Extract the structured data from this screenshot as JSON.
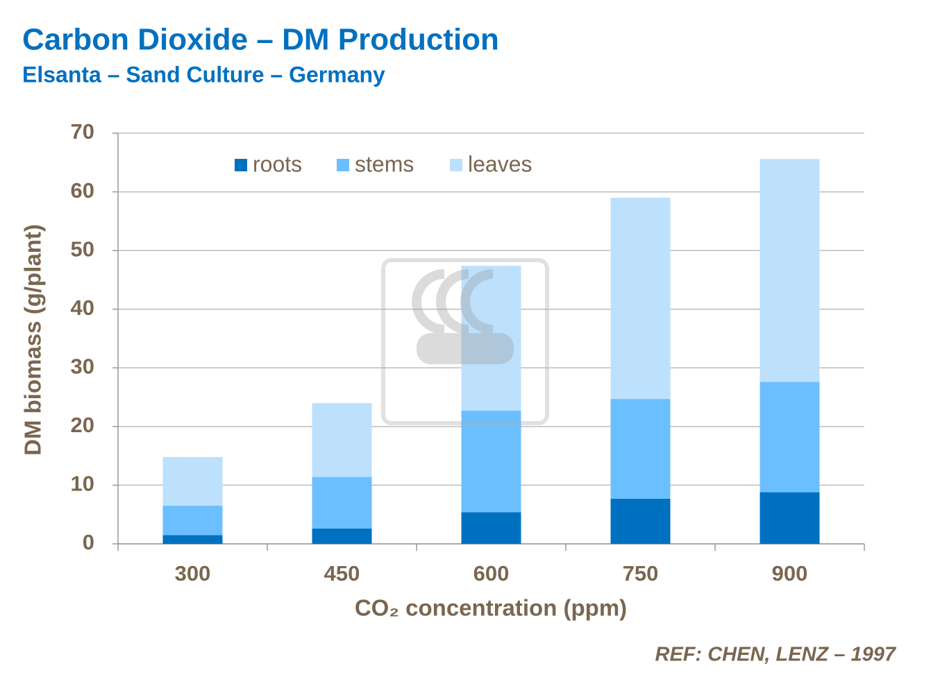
{
  "chart_data": {
    "type": "bar",
    "stacked": true,
    "title": "Carbon Dioxide – DM Production",
    "subtitle": "Elsanta – Sand Culture – Germany",
    "x_label": "CO₂ concentration (ppm)",
    "y_label": "DM biomass (g/plant)",
    "annotation": "REF: CHEN, LENZ – 1997",
    "watermark": "YARA",
    "categories": [
      "300",
      "450",
      "600",
      "750",
      "900"
    ],
    "series": [
      {
        "name": "roots",
        "color": "#0070c0",
        "values": [
          1.5,
          2.6,
          5.4,
          7.7,
          8.8
        ]
      },
      {
        "name": "stems",
        "color": "#6bbfff",
        "values": [
          5.0,
          8.8,
          17.3,
          17.0,
          18.8
        ]
      },
      {
        "name": "leaves",
        "color": "#bde0fc",
        "values": [
          8.3,
          12.6,
          24.7,
          34.3,
          38.0
        ]
      }
    ],
    "ylim": [
      0,
      70
    ],
    "yticks": [
      0,
      10,
      20,
      30,
      40,
      50,
      60,
      70
    ],
    "grid": true,
    "legend": "top"
  }
}
